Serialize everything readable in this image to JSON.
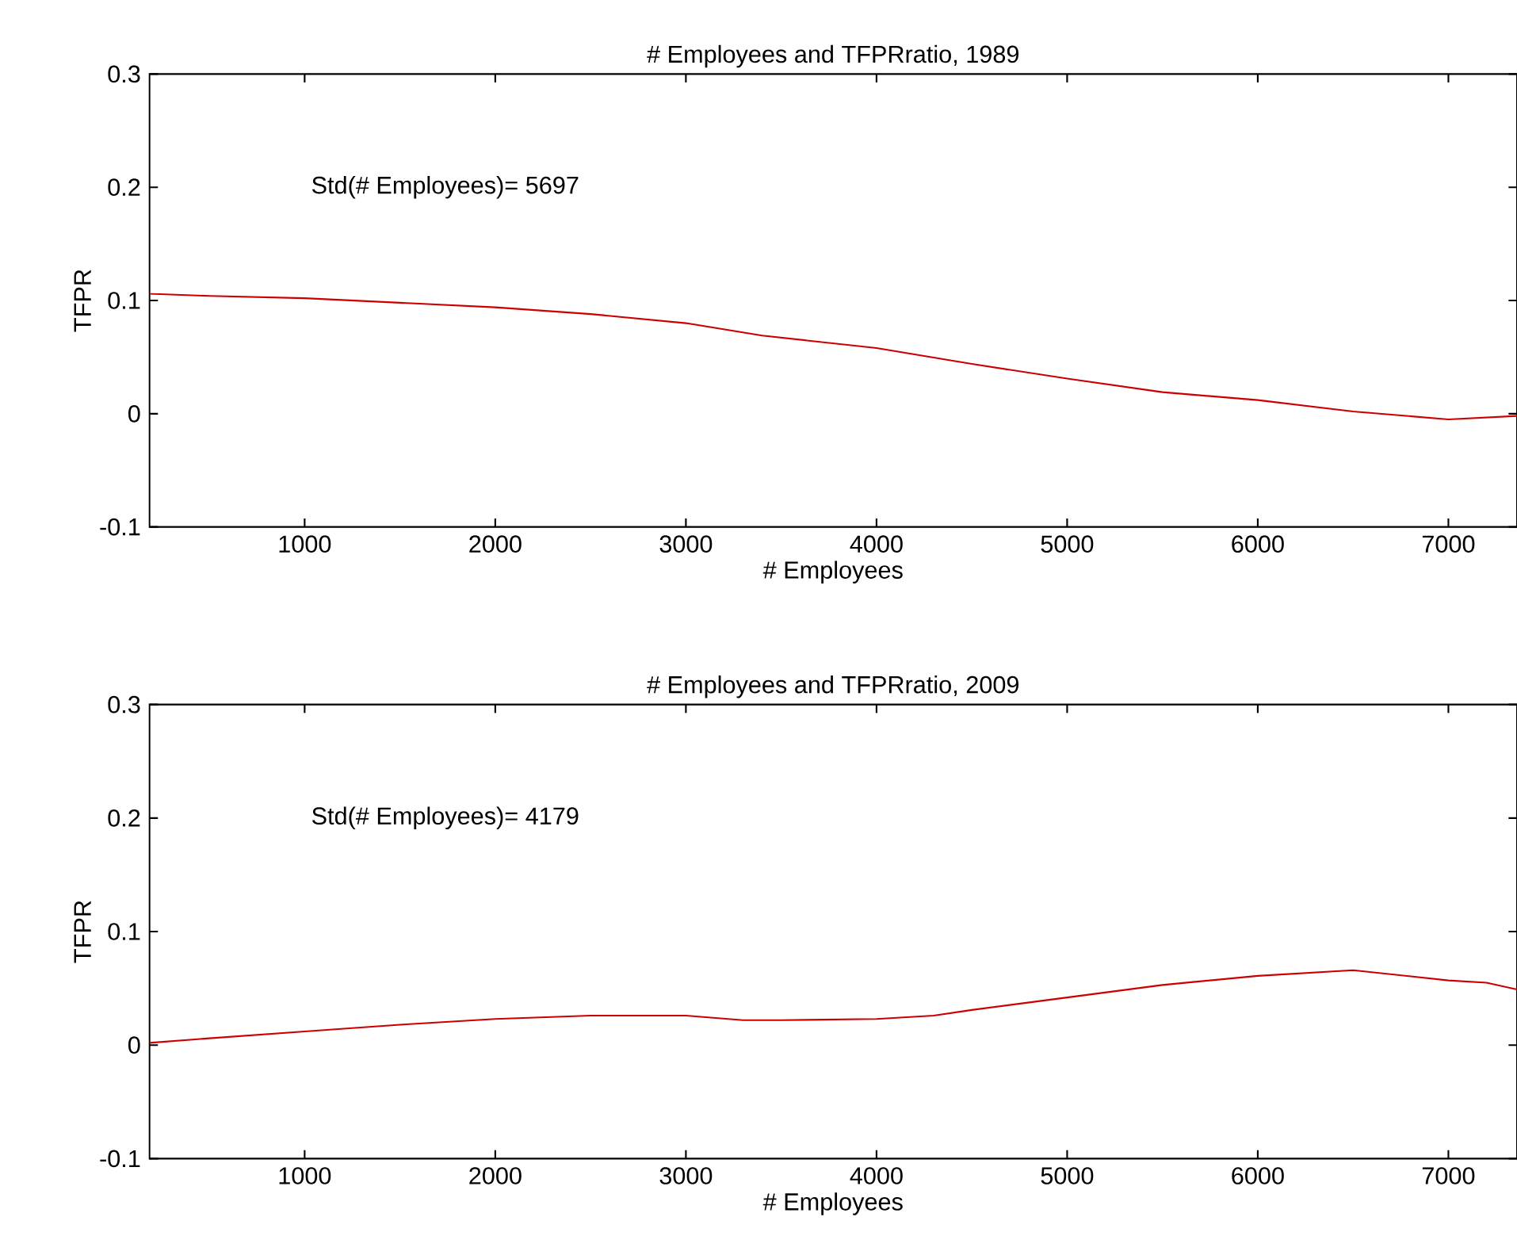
{
  "chart_data": [
    {
      "type": "line",
      "title": "# Employees and TFPRratio, 1989",
      "xlabel": "# Employees",
      "ylabel": "TFPR",
      "annotations": [
        "Std(# Employees)=  5697"
      ],
      "x": [
        186,
        500,
        1000,
        1500,
        2000,
        2500,
        3000,
        3400,
        4000,
        4500,
        5000,
        5500,
        6000,
        6500,
        7000,
        7360
      ],
      "series": [
        {
          "color": "#cc0000",
          "values": [
            0.106,
            0.104,
            0.102,
            0.098,
            0.094,
            0.088,
            0.08,
            0.069,
            0.058,
            0.044,
            0.031,
            0.019,
            0.012,
            0.002,
            -0.005,
            -0.002
          ]
        }
      ],
      "xlim": [
        186,
        7360
      ],
      "ylim": [
        -0.1,
        0.3
      ],
      "xticks": [
        1000,
        2000,
        3000,
        4000,
        5000,
        6000,
        7000
      ],
      "yticks": [
        -0.1,
        0,
        0.1,
        0.2,
        0.3
      ]
    },
    {
      "type": "line",
      "title": "# Employees and TFPRratio, 2009",
      "xlabel": "# Employees",
      "ylabel": "TFPR",
      "annotations": [
        "Std(# Employees)=  4179"
      ],
      "x": [
        186,
        500,
        1000,
        1500,
        2000,
        2500,
        3000,
        3300,
        3500,
        4000,
        4300,
        4500,
        5000,
        5500,
        6000,
        6500,
        7000,
        7200,
        7360
      ],
      "series": [
        {
          "color": "#cc0000",
          "values": [
            0.002,
            0.006,
            0.012,
            0.018,
            0.023,
            0.026,
            0.026,
            0.022,
            0.022,
            0.023,
            0.026,
            0.031,
            0.042,
            0.053,
            0.061,
            0.066,
            0.057,
            0.055,
            0.049
          ]
        }
      ],
      "xlim": [
        186,
        7360
      ],
      "ylim": [
        -0.1,
        0.3
      ],
      "xticks": [
        1000,
        2000,
        3000,
        4000,
        5000,
        6000,
        7000
      ],
      "yticks": [
        -0.1,
        0,
        0.1,
        0.2,
        0.3
      ]
    }
  ]
}
